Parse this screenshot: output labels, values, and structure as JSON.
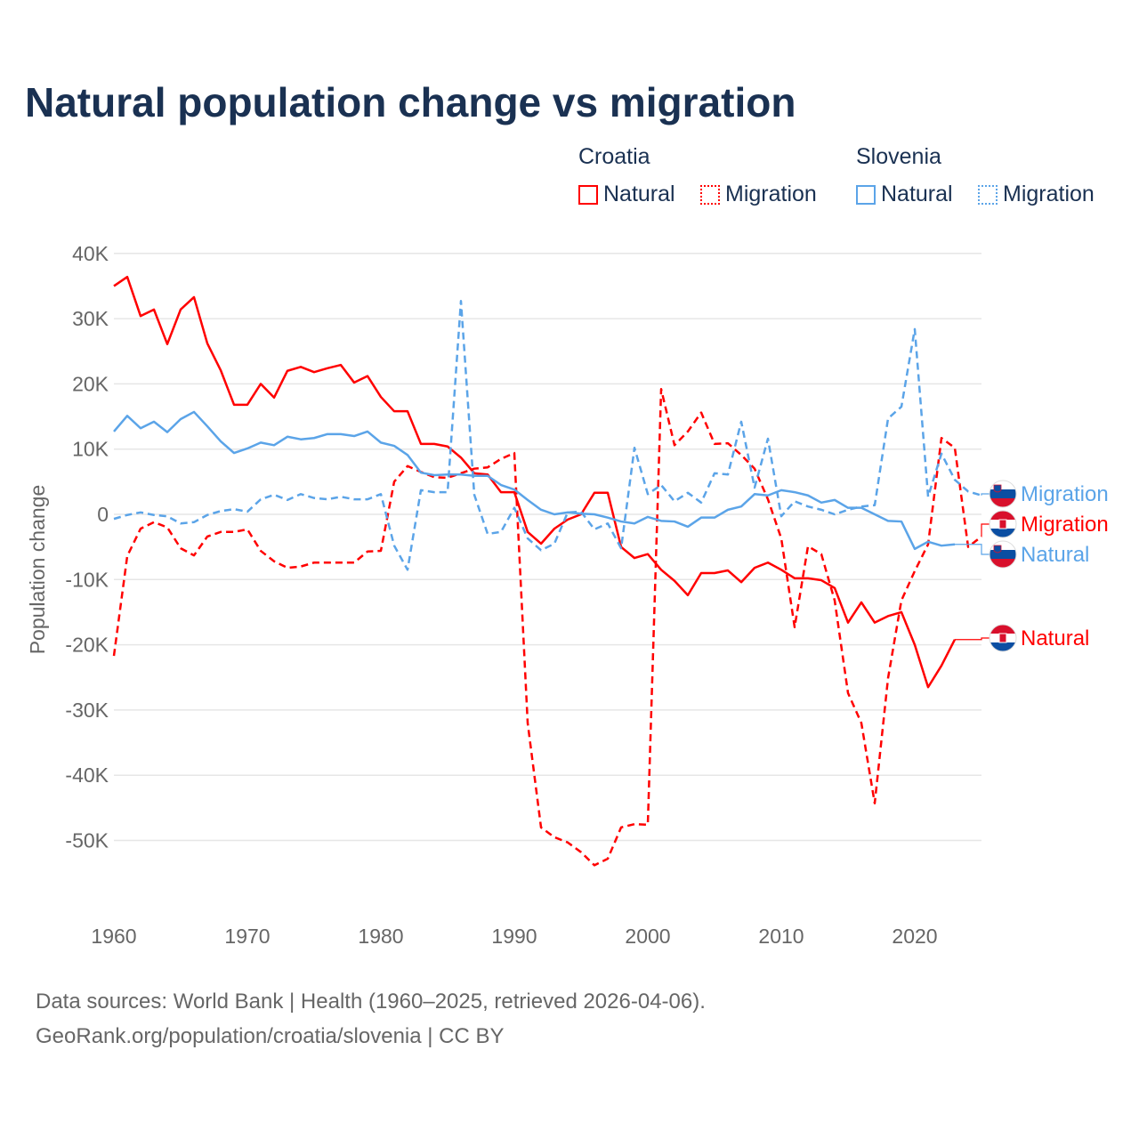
{
  "chart_data": {
    "type": "line",
    "title": "Natural population change vs migration",
    "xlabel": "",
    "ylabel": "Population change",
    "xlim": [
      1960,
      2025
    ],
    "ylim": [
      -50000,
      40000
    ],
    "x_ticks": [
      1960,
      1970,
      1980,
      1990,
      2000,
      2010,
      2020
    ],
    "x_tick_labels": [
      "1960",
      "1970",
      "1980",
      "1990",
      "2000",
      "2010",
      "2020"
    ],
    "y_ticks": [
      40000,
      30000,
      20000,
      10000,
      0,
      -10000,
      -20000,
      -30000,
      -40000,
      -50000
    ],
    "y_tick_labels": [
      "40K",
      "30K",
      "20K",
      "10K",
      "0",
      "-10K",
      "-20K",
      "-30K",
      "-40K",
      "-50K"
    ],
    "grid": true,
    "legend": {
      "placement": "top-right",
      "groups": [
        {
          "name": "Croatia",
          "items": [
            "Natural",
            "Migration"
          ]
        },
        {
          "name": "Slovenia",
          "items": [
            "Natural",
            "Migration"
          ]
        }
      ]
    },
    "series": [
      {
        "name": "Croatia Natural",
        "country": "Croatia",
        "kind": "Natural",
        "end_label": "Natural",
        "color": "#ff0000",
        "dash": false,
        "x_start": 1960,
        "values": [
          35,
          36.4,
          30.4,
          31.4,
          26.1,
          31.4,
          33.3,
          26.2,
          22.1,
          16.8,
          16.8,
          20,
          17.9,
          22,
          22.6,
          21.8,
          22.4,
          22.9,
          20.2,
          21.2,
          18,
          15.8,
          15.8,
          10.8,
          10.8,
          10.4,
          8.7,
          6.3,
          6.1,
          3.4,
          3.4,
          -2.7,
          -4.5,
          -2.2,
          -0.8,
          0,
          3.3,
          3.3,
          -5,
          -6.7,
          -6.1,
          -8.5,
          -10.2,
          -12.4,
          -9,
          -9,
          -8.6,
          -10.4,
          -8.2,
          -7.4,
          -8.5,
          -9.8,
          -9.8,
          -10.1,
          -11.3,
          -16.6,
          -13.5,
          -16.6,
          -15.6,
          -15,
          -20,
          -26.5,
          -23.2,
          -19.2
        ]
      },
      {
        "name": "Croatia Migration",
        "country": "Croatia",
        "kind": "Migration",
        "end_label": "Migration",
        "color": "#ff0000",
        "dash": true,
        "x_start": 1960,
        "values": [
          -21.7,
          -6.4,
          -2.2,
          -1.2,
          -2,
          -5.2,
          -6.3,
          -3.4,
          -2.7,
          -2.7,
          -2.3,
          -5.6,
          -7.2,
          -8.2,
          -8,
          -7.4,
          -7.4,
          -7.4,
          -7.4,
          -5.7,
          -5.6,
          5,
          7.4,
          6.5,
          5.7,
          5.6,
          6.3,
          7,
          7.2,
          8.5,
          9.4,
          -32,
          -48,
          -49.5,
          -50.3,
          -51.8,
          -53.8,
          -52.8,
          -48,
          -47.5,
          -47.6,
          19.2,
          10.6,
          12.7,
          15.6,
          10.8,
          10.9,
          9.1,
          7,
          2.3,
          -3.7,
          -17.3,
          -4.9,
          -6.1,
          -13.2,
          -27.4,
          -32,
          -44.3,
          -25.1,
          -13.2,
          -8.7,
          -4.6,
          11.7,
          10.2,
          -5,
          -3.4
        ]
      },
      {
        "name": "Slovenia Natural",
        "country": "Slovenia",
        "kind": "Natural",
        "end_label": "Natural",
        "color": "#5ba4e8",
        "dash": false,
        "x_start": 1960,
        "values": [
          12.7,
          15.1,
          13.2,
          14.2,
          12.6,
          14.6,
          15.7,
          13.5,
          11.2,
          9.4,
          10.1,
          11,
          10.6,
          11.9,
          11.5,
          11.7,
          12.3,
          12.3,
          12,
          12.7,
          11,
          10.5,
          9.1,
          6.4,
          6,
          6.1,
          6.1,
          5.9,
          5.9,
          4.5,
          3.8,
          2.2,
          0.7,
          0,
          0.3,
          0.1,
          0,
          -0.5,
          -1.1,
          -1.4,
          -0.4,
          -1,
          -1.1,
          -1.9,
          -0.5,
          -0.5,
          0.7,
          1.2,
          3.1,
          2.9,
          3.7,
          3.4,
          2.9,
          1.8,
          2.2,
          1,
          1,
          0,
          -1,
          -1.1,
          -5.3,
          -4.2,
          -4.8,
          -4.6
        ]
      },
      {
        "name": "Slovenia Migration",
        "country": "Slovenia",
        "kind": "Migration",
        "end_label": "Migration",
        "color": "#5ba4e8",
        "dash": true,
        "x_start": 1960,
        "values": [
          -0.7,
          -0.1,
          0.3,
          -0.1,
          -0.3,
          -1.4,
          -1.2,
          -0.1,
          0.5,
          0.8,
          0.4,
          2.3,
          3,
          2.2,
          3.1,
          2.5,
          2.3,
          2.7,
          2.3,
          2.3,
          3.1,
          -4.8,
          -8.5,
          3.7,
          3.4,
          3.4,
          32.7,
          3,
          -3,
          -2.7,
          1,
          -3.7,
          -5.5,
          -4.5,
          0.3,
          0.4,
          -2.3,
          -1.4,
          -5.2,
          10.2,
          3.1,
          4.5,
          2,
          3.3,
          1.8,
          6.3,
          6.1,
          14.2,
          4.1,
          11.6,
          -0.3,
          2,
          1.2,
          0.7,
          0,
          0.7,
          1.2,
          1.4,
          14.7,
          16.5,
          28.4,
          2.7,
          9.3,
          5.3,
          3.5,
          2.9
        ]
      }
    ],
    "value_unit": "thousands"
  },
  "legend": {
    "croatia": "Croatia",
    "slovenia": "Slovenia",
    "natural": "Natural",
    "migration": "Migration"
  },
  "source": {
    "line1": "Data sources: World Bank | Health (1960–2025, retrieved 2026-04-06).",
    "line2": "GeoRank.org/population/croatia/slovenia | CC BY"
  },
  "colors": {
    "croatia": "#ff0000",
    "slovenia": "#5ba4e8",
    "title": "#1a3152"
  }
}
